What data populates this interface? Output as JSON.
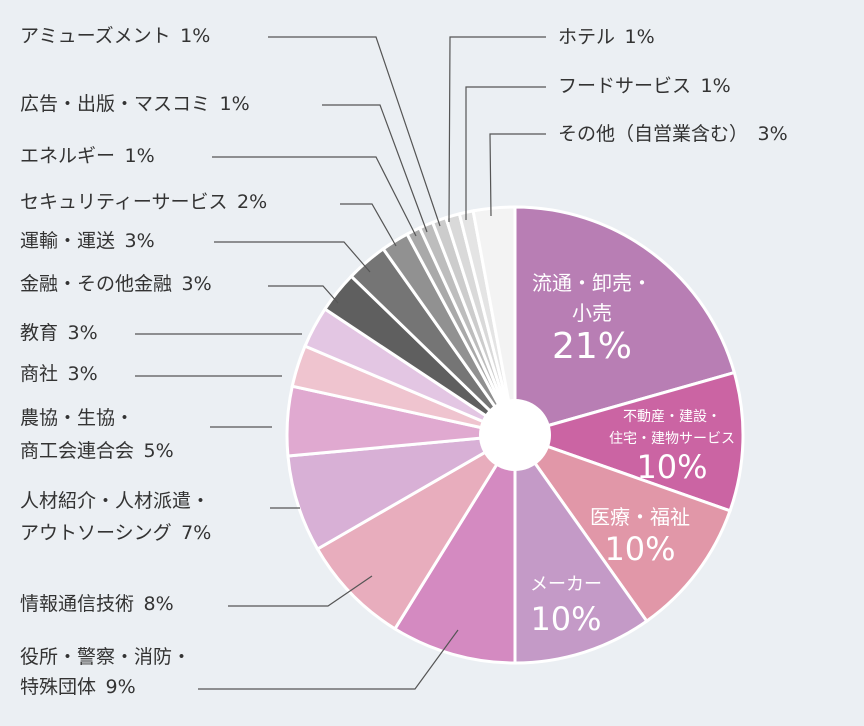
{
  "chart_data": {
    "type": "pie",
    "title": "",
    "slices": [
      {
        "label": "流通・卸売・小売",
        "label_lines": [
          "流通・卸売・",
          "小売"
        ],
        "pct_text": "21%",
        "value": 21,
        "color": "#b87eb4",
        "label_inside": true
      },
      {
        "label": "不動産・建設・住宅・建物サービス",
        "label_lines": [
          "不動産・建設・",
          "住宅・建物サービス"
        ],
        "pct_text": "10%",
        "value": 10,
        "color": "#cb64a3",
        "label_inside": true
      },
      {
        "label": "医療・福祉",
        "label_lines": [
          "医療・福祉"
        ],
        "pct_text": "10%",
        "value": 10,
        "color": "#e197a8",
        "label_inside": true
      },
      {
        "label": "メーカー",
        "label_lines": [
          "メーカー"
        ],
        "pct_text": "10%",
        "value": 10,
        "color": "#c49ac7",
        "label_inside": true
      },
      {
        "label": "役所・警察・消防・特殊団体",
        "label_lines": [
          "役所・警察・消防・",
          "特殊団体"
        ],
        "pct_text": "9%",
        "value": 9,
        "color": "#d48ac1",
        "label_inside": false
      },
      {
        "label": "情報通信技術",
        "label_lines": [
          "情報通信技術"
        ],
        "pct_text": "8%",
        "value": 8,
        "color": "#e8adbd",
        "label_inside": false
      },
      {
        "label": "人材紹介・人材派遣・アウトソーシング",
        "label_lines": [
          "人材紹介・人材派遣・",
          "アウトソーシング"
        ],
        "pct_text": "7%",
        "value": 7,
        "color": "#d8b0d6",
        "label_inside": false
      },
      {
        "label": "農協・生協・商工会連合会",
        "label_lines": [
          "農協・生協・",
          "商工会連合会"
        ],
        "pct_text": "5%",
        "value": 5,
        "color": "#e0a9d0",
        "label_inside": false
      },
      {
        "label": "商社",
        "label_lines": [
          "商社"
        ],
        "pct_text": "3%",
        "value": 3,
        "color": "#efc4cf",
        "label_inside": false
      },
      {
        "label": "教育",
        "label_lines": [
          "教育"
        ],
        "pct_text": "3%",
        "value": 3,
        "color": "#e3c6e3",
        "label_inside": false
      },
      {
        "label": "金融・その他金融",
        "label_lines": [
          "金融・その他金融"
        ],
        "pct_text": "3%",
        "value": 3,
        "color": "#5f5f5f",
        "label_inside": false
      },
      {
        "label": "運輸・運送",
        "label_lines": [
          "運輸・運送"
        ],
        "pct_text": "3%",
        "value": 3,
        "color": "#757575",
        "label_inside": false
      },
      {
        "label": "セキュリティーサービス",
        "label_lines": [
          "セキュリティーサービス"
        ],
        "pct_text": "2%",
        "value": 2,
        "color": "#919191",
        "label_inside": false
      },
      {
        "label": "エネルギー",
        "label_lines": [
          "エネルギー"
        ],
        "pct_text": "1%",
        "value": 1,
        "color": "#a9a9a9",
        "label_inside": false
      },
      {
        "label": "広告・出版・マスコミ",
        "label_lines": [
          "広告・出版・マスコミ"
        ],
        "pct_text": "1%",
        "value": 1,
        "color": "#bdbdbd",
        "label_inside": false
      },
      {
        "label": "アミューズメント",
        "label_lines": [
          "アミューズメント"
        ],
        "pct_text": "1%",
        "value": 1,
        "color": "#cccccc",
        "label_inside": false
      },
      {
        "label": "ホテル",
        "label_lines": [
          "ホテル"
        ],
        "pct_text": "1%",
        "value": 1,
        "color": "#d9d9d9",
        "label_inside": false
      },
      {
        "label": "フードサービス",
        "label_lines": [
          "フードサービス"
        ],
        "pct_text": "1%",
        "value": 1,
        "color": "#e4e4e4",
        "label_inside": false
      },
      {
        "label": "その他（自営業含む）",
        "label_lines": [
          "その他（自営業含む）"
        ],
        "pct_text": "3%",
        "value": 3,
        "color": "#f3f3f3",
        "label_inside": false
      }
    ],
    "center_hole": true,
    "legend": "none"
  }
}
